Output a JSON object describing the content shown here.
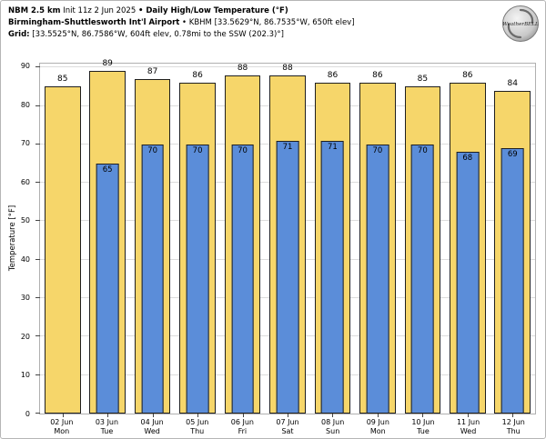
{
  "header": {
    "line1": {
      "model_bold": "NBM 2.5 km",
      "init": " Init 11z 2 Jun 2025 ",
      "product_bold": "• Daily High/Low Temperature (°F)"
    },
    "line2": {
      "station_bold": "Birmingham-Shuttlesworth Int'l Airport",
      "station_rest": " • KBHM [33.5629°N, 86.7535°W, 650ft elev]"
    },
    "line3": {
      "grid_bold": "Grid:",
      "grid_rest": " [33.5525°N, 86.7586°W, 604ft elev, 0.78mi to the SSW (202.3)°]"
    }
  },
  "logo": {
    "name": "WeatherBELL"
  },
  "chart_data": {
    "type": "bar",
    "title": "Daily High/Low Temperature (°F)",
    "ylabel": "Temperature [°F]",
    "ylim": [
      0,
      90
    ],
    "yticks": [
      0,
      10,
      20,
      30,
      40,
      50,
      60,
      70,
      80,
      90
    ],
    "grid": true,
    "legend_position": "none",
    "categories": [
      {
        "date": "02 Jun",
        "day": "Mon"
      },
      {
        "date": "03 Jun",
        "day": "Tue"
      },
      {
        "date": "04 Jun",
        "day": "Wed"
      },
      {
        "date": "05 Jun",
        "day": "Thu"
      },
      {
        "date": "06 Jun",
        "day": "Fri"
      },
      {
        "date": "07 Jun",
        "day": "Sat"
      },
      {
        "date": "08 Jun",
        "day": "Sun"
      },
      {
        "date": "09 Jun",
        "day": "Mon"
      },
      {
        "date": "10 Jun",
        "day": "Tue"
      },
      {
        "date": "11 Jun",
        "day": "Wed"
      },
      {
        "date": "12 Jun",
        "day": "Thu"
      }
    ],
    "series": [
      {
        "name": "High",
        "color": "#f6d66a",
        "values": [
          85,
          89,
          87,
          86,
          88,
          88,
          86,
          86,
          85,
          86,
          84
        ]
      },
      {
        "name": "Low",
        "color": "#5b8dd9",
        "values": [
          null,
          65,
          70,
          70,
          70,
          71,
          71,
          70,
          70,
          68,
          69
        ]
      }
    ]
  }
}
